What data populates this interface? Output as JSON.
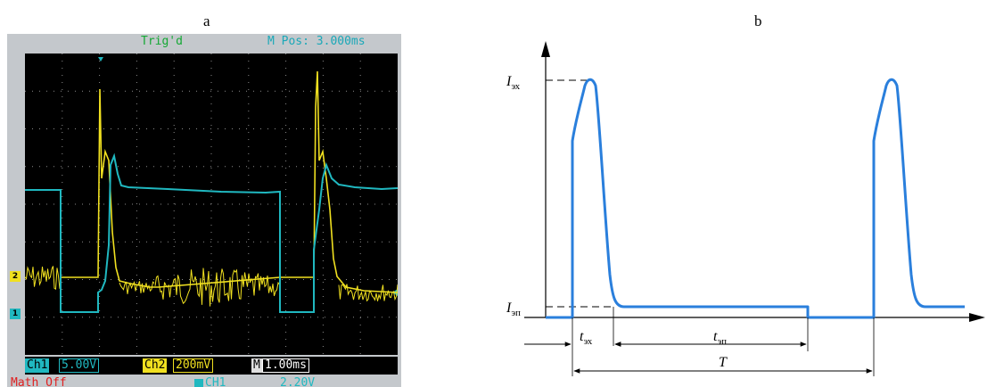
{
  "panels": {
    "a": {
      "label": "a"
    },
    "b": {
      "label": "b"
    }
  },
  "oscilloscope": {
    "trig_status": "Trig'd",
    "m_pos": "M Pos: 3.000ms",
    "ch1_marker": "1",
    "ch2_marker": "2",
    "ch1_label": "Ch1",
    "ch1_scale": "5.00V",
    "ch2_label": "Ch2",
    "ch2_scale": "200mV",
    "m_label": "M",
    "m_scale": "1.00ms",
    "math_status": "Math Off",
    "trig_source": "CH1",
    "trig_level": "2.20V",
    "colors": {
      "ch1": "#20b8c0",
      "ch2": "#f0e020",
      "screen": "#000000"
    }
  },
  "diagram": {
    "y_label_high": {
      "main": "I",
      "sub": "эх"
    },
    "y_label_low": {
      "main": "I",
      "sub": "эп"
    },
    "t1_label": {
      "main": "t",
      "sub": "эх"
    },
    "t2_label": {
      "main": "t",
      "sub": "эп"
    },
    "period_label": "T",
    "colors": {
      "waveform": "#2a7fdc",
      "axes": "#000000"
    }
  }
}
